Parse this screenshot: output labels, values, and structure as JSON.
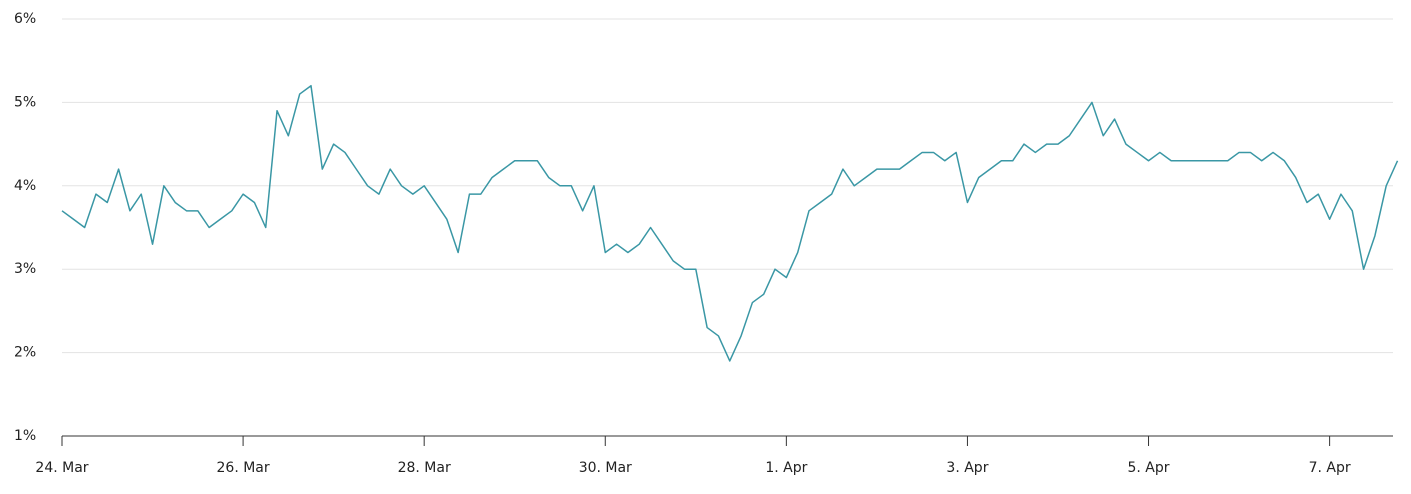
{
  "chart_data": {
    "type": "line",
    "color": "#3a97a5",
    "grid": true,
    "x": [
      0,
      0.125,
      0.25,
      0.375,
      0.5,
      0.625,
      0.75,
      0.875,
      1,
      1.125,
      1.25,
      1.375,
      1.5,
      1.625,
      1.75,
      1.875,
      2,
      2.125,
      2.25,
      2.375,
      2.5,
      2.625,
      2.75,
      2.875,
      3,
      3.125,
      3.25,
      3.375,
      3.5,
      3.625,
      3.75,
      3.875,
      4,
      4.125,
      4.25,
      4.375,
      4.5,
      4.625,
      4.75,
      4.875,
      5,
      5.125,
      5.25,
      5.375,
      5.5,
      5.625,
      5.75,
      5.875,
      6,
      6.125,
      6.25,
      6.375,
      6.5,
      6.625,
      6.75,
      6.875,
      7,
      7.125,
      7.25,
      7.375,
      7.5,
      7.625,
      7.75,
      7.875,
      8,
      8.125,
      8.25,
      8.375,
      8.5,
      8.625,
      8.75,
      8.875,
      9,
      9.125,
      9.25,
      9.375,
      9.5,
      9.625,
      9.75,
      9.875,
      10,
      10.125,
      10.25,
      10.375,
      10.5,
      10.625,
      10.75,
      10.875,
      11,
      11.125,
      11.25,
      11.375,
      11.5,
      11.625,
      11.75,
      11.875,
      12,
      12.125,
      12.25,
      12.375,
      12.5,
      12.625,
      12.75,
      12.875,
      13,
      13.125,
      13.25,
      13.375,
      13.5,
      13.625,
      13.75,
      13.875,
      14,
      14.125,
      14.25,
      14.375,
      14.5,
      14.625,
      14.75
    ],
    "values": [
      3.7,
      3.6,
      3.5,
      3.9,
      3.8,
      4.2,
      3.7,
      3.9,
      3.3,
      4.0,
      3.8,
      3.7,
      3.7,
      3.5,
      3.6,
      3.7,
      3.9,
      3.8,
      3.5,
      4.9,
      4.6,
      5.1,
      5.2,
      4.2,
      4.5,
      4.4,
      4.2,
      4.0,
      3.9,
      4.2,
      4.0,
      3.9,
      4.0,
      3.8,
      3.6,
      3.2,
      3.9,
      3.9,
      4.1,
      4.2,
      4.3,
      4.3,
      4.3,
      4.1,
      4.0,
      4.0,
      3.7,
      4.0,
      3.2,
      3.3,
      3.2,
      3.3,
      3.5,
      3.3,
      3.1,
      3.0,
      3.0,
      2.3,
      2.2,
      1.9,
      2.2,
      2.6,
      2.7,
      3.0,
      2.9,
      3.2,
      3.7,
      3.8,
      3.9,
      4.2,
      4.0,
      4.1,
      4.2,
      4.2,
      4.2,
      4.3,
      4.4,
      4.4,
      4.3,
      4.4,
      3.8,
      4.1,
      4.2,
      4.3,
      4.3,
      4.5,
      4.4,
      4.5,
      4.5,
      4.6,
      4.8,
      5.0,
      4.6,
      4.8,
      4.5,
      4.4,
      4.3,
      4.4,
      4.3,
      4.3,
      4.3,
      4.3,
      4.3,
      4.3,
      4.4,
      4.4,
      4.3,
      4.4,
      4.3,
      4.1,
      3.8,
      3.9,
      3.6,
      3.9,
      3.7,
      3.0,
      3.4,
      4.0,
      4.3
    ],
    "xlim": [
      0,
      14.7
    ],
    "xticks": [
      {
        "value": 0,
        "label": "24. Mar"
      },
      {
        "value": 2,
        "label": "26. Mar"
      },
      {
        "value": 4,
        "label": "28. Mar"
      },
      {
        "value": 6,
        "label": "30. Mar"
      },
      {
        "value": 8,
        "label": "1. Apr"
      },
      {
        "value": 10,
        "label": "3. Apr"
      },
      {
        "value": 12,
        "label": "5. Apr"
      },
      {
        "value": 14,
        "label": "7. Apr"
      }
    ],
    "ylim": [
      1,
      6
    ],
    "yticks": [
      {
        "value": 1,
        "label": "1%"
      },
      {
        "value": 2,
        "label": "2%"
      },
      {
        "value": 3,
        "label": "3%"
      },
      {
        "value": 4,
        "label": "4%"
      },
      {
        "value": 5,
        "label": "5%"
      },
      {
        "value": 6,
        "label": "6%"
      }
    ]
  }
}
